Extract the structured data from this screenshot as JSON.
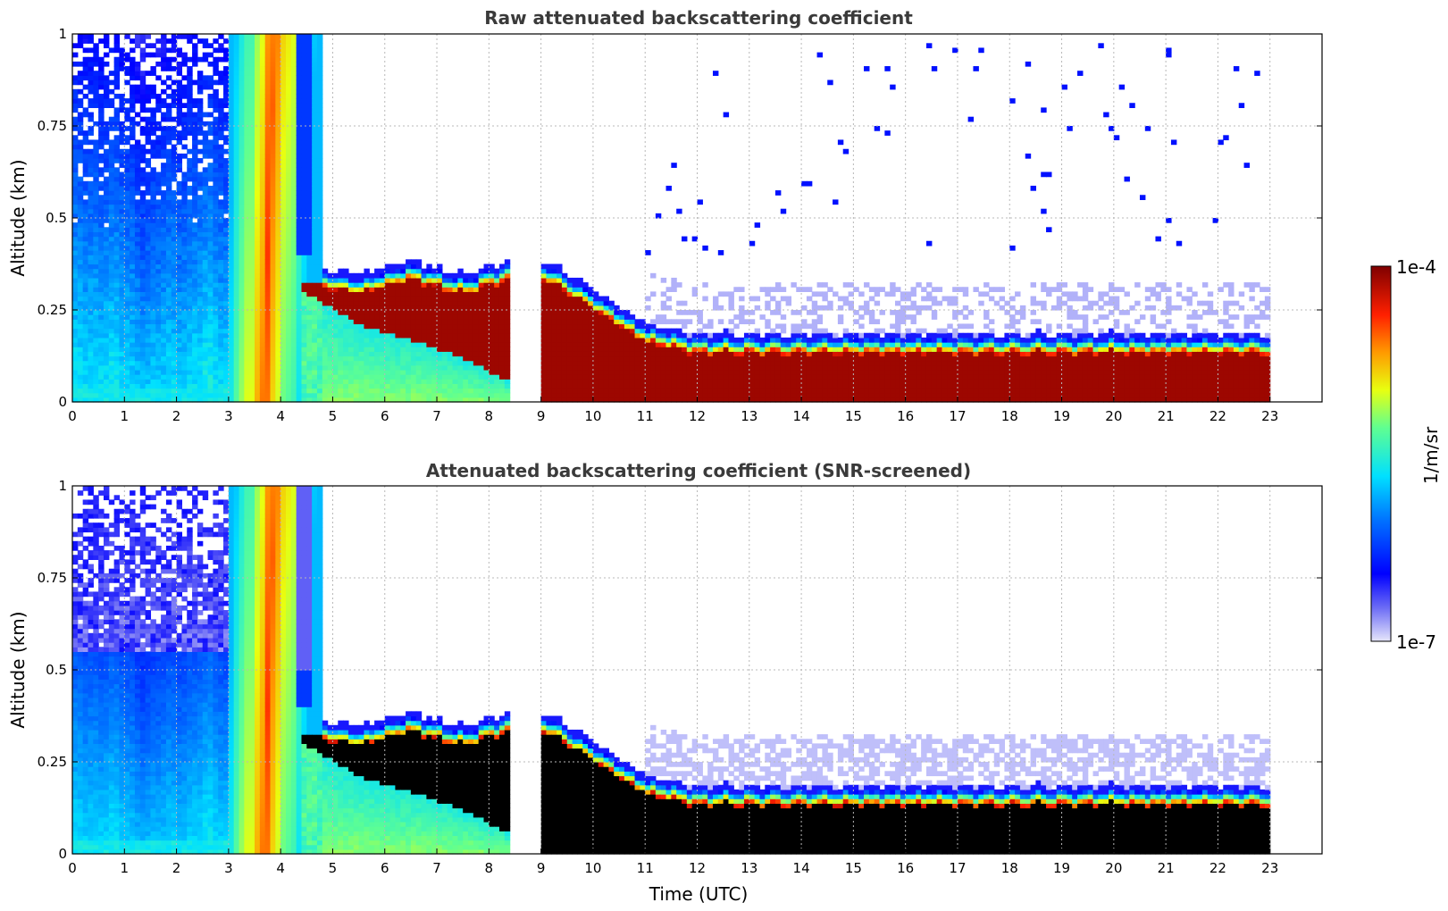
{
  "chart_data": [
    {
      "type": "heatmap",
      "title": "Raw attenuated backscattering coefficient",
      "xlabel": "",
      "ylabel": "Altitude (km)",
      "xlim": [
        0,
        24
      ],
      "ylim": [
        0,
        1
      ],
      "xticks": [
        "0",
        "1",
        "2",
        "3",
        "4",
        "5",
        "6",
        "7",
        "8",
        "9",
        "10",
        "11",
        "12",
        "13",
        "14",
        "15",
        "16",
        "17",
        "18",
        "19",
        "20",
        "21",
        "22",
        "23"
      ],
      "yticks": [
        "0",
        "0.25",
        "0.5",
        "0.75",
        "1"
      ],
      "grid": true,
      "masked_color": "#000000",
      "features": {
        "no_data_gap_utc": [
          8.4,
          9.05
        ],
        "data_end_utc": 23.0,
        "night_aerosol_end_utc": 3.05,
        "fog_column_utc": [
          3.05,
          4.8
        ],
        "cloud_layer": [
          {
            "time": 4.45,
            "base": 0.3,
            "top": 0.36
          },
          {
            "time": 5.5,
            "base": 0.21,
            "top": 0.33
          },
          {
            "time": 6.5,
            "base": 0.17,
            "top": 0.37
          },
          {
            "time": 7.5,
            "base": 0.12,
            "top": 0.33
          },
          {
            "time": 8.35,
            "base": 0.06,
            "top": 0.37
          },
          {
            "time": 9.1,
            "base": 0.0,
            "top": 0.37
          },
          {
            "time": 10.0,
            "base": 0.0,
            "top": 0.29
          },
          {
            "time": 11.0,
            "base": 0.0,
            "top": 0.2
          },
          {
            "time": 12.0,
            "base": 0.0,
            "top": 0.17
          },
          {
            "time": 23.0,
            "base": 0.0,
            "top": 0.17
          }
        ]
      }
    },
    {
      "type": "heatmap",
      "title": "Attenuated backscattering coefficient (SNR-screened)",
      "xlabel": "Time (UTC)",
      "ylabel": "Altitude (km)",
      "xlim": [
        0,
        24
      ],
      "ylim": [
        0,
        1
      ],
      "xticks": [
        "0",
        "1",
        "2",
        "3",
        "4",
        "5",
        "6",
        "7",
        "8",
        "9",
        "10",
        "11",
        "12",
        "13",
        "14",
        "15",
        "16",
        "17",
        "18",
        "19",
        "20",
        "21",
        "22",
        "23"
      ],
      "yticks": [
        "0",
        "0.25",
        "0.5",
        "0.75",
        "1"
      ],
      "grid": true,
      "masked_color": "#000000"
    }
  ],
  "colorbar": {
    "label": "1/m/sr",
    "max_label": "1e-4",
    "min_label": "1e-7",
    "scale": "log",
    "range": [
      1e-07,
      0.0001
    ],
    "colormap": "jet"
  }
}
